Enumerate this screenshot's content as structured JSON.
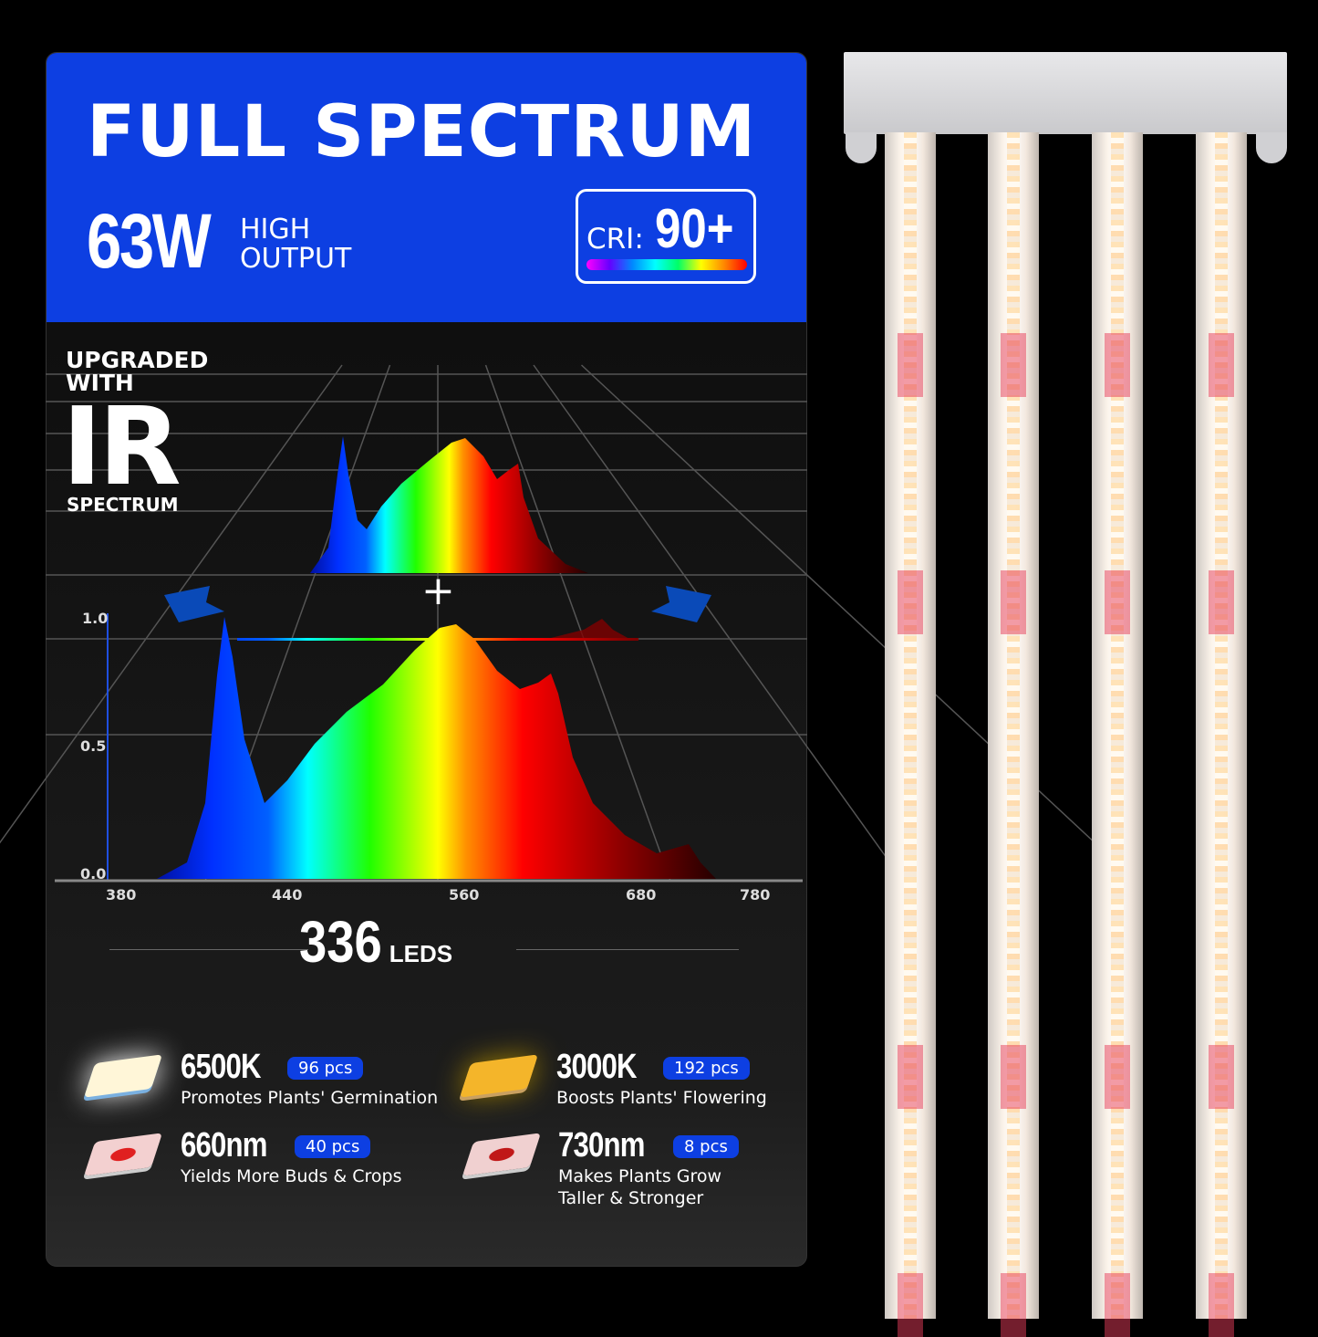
{
  "header": {
    "title": "FULL SPECTRUM",
    "wattage": "63W",
    "output_line1": "HIGH",
    "output_line2": "OUTPUT",
    "cri_label": "CRI:",
    "cri_value": "90+"
  },
  "ir_badge": {
    "line1": "UPGRADED",
    "line2": "WITH",
    "big": "IR",
    "line3": "SPECTRUM"
  },
  "chart": {
    "plus": "+",
    "y_ticks": [
      "1.0",
      "0.5",
      "0.0"
    ],
    "x_ticks": [
      "380",
      "440",
      "560",
      "680",
      "780"
    ]
  },
  "leds": {
    "count": "336",
    "unit": "LEDS",
    "items": [
      {
        "name": "6500K",
        "pcs": "96 pcs",
        "desc": "Promotes Plants' Germination",
        "chip_color": "#fff6d8"
      },
      {
        "name": "3000K",
        "pcs": "192 pcs",
        "desc": "Boosts Plants' Flowering",
        "chip_color": "#f4b52a"
      },
      {
        "name": "660nm",
        "pcs": "40 pcs",
        "desc": "Yields More Buds & Crops",
        "chip_color": "#f3d0d0"
      },
      {
        "name": "730nm",
        "pcs": "8 pcs",
        "desc": "Makes Plants Grow Taller & Stronger",
        "chip_color": "#f0d0d0"
      }
    ]
  },
  "colors": {
    "brand_blue": "#0d3fe2"
  }
}
